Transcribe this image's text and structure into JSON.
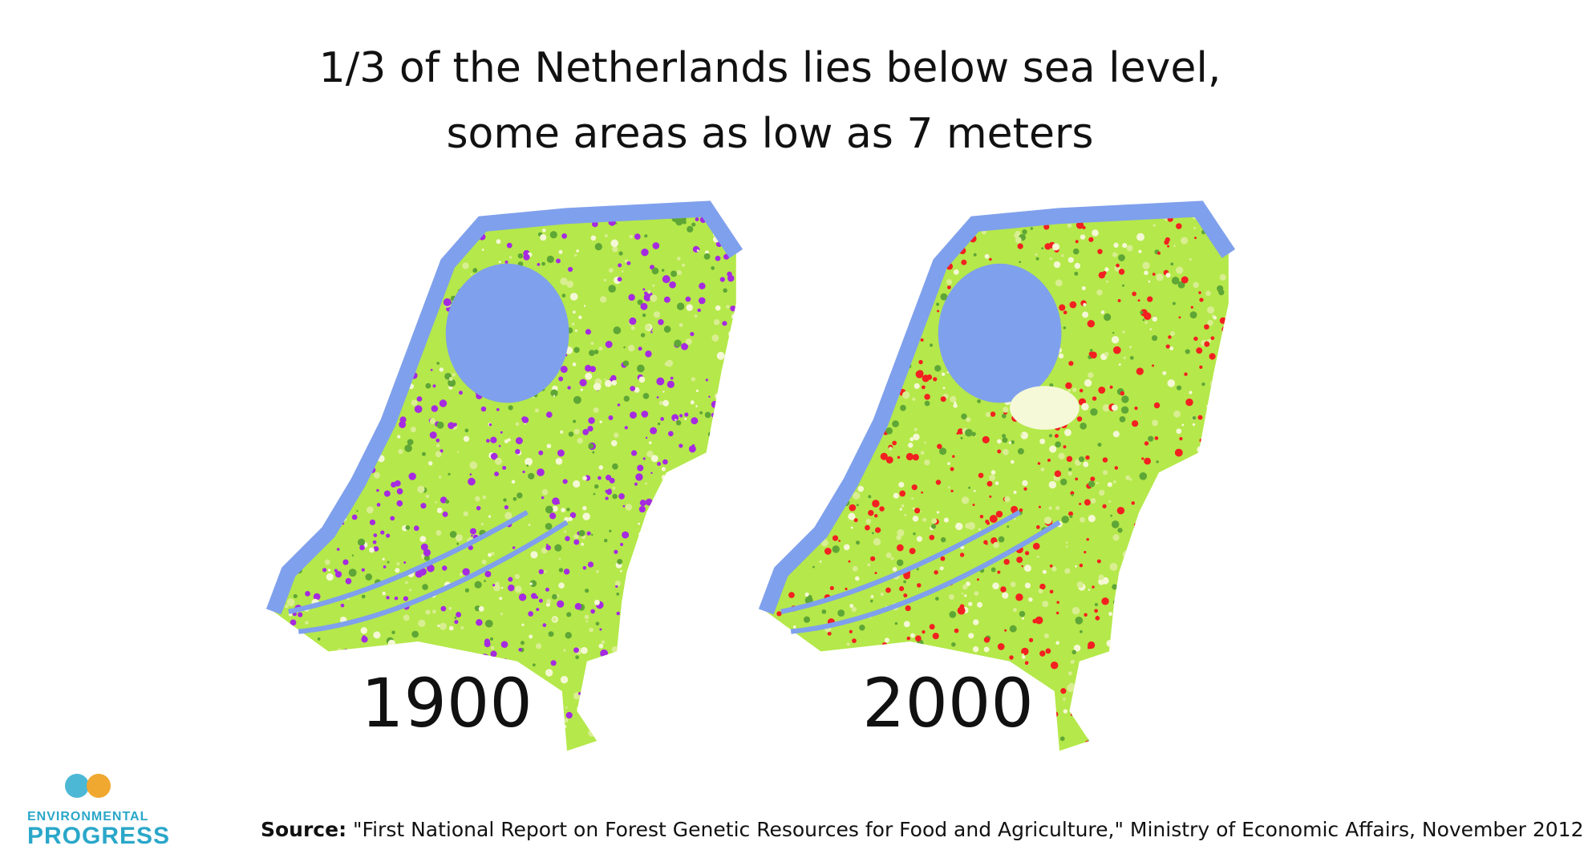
{
  "title": [
    "1/3 of the Netherlands lies below sea level,",
    "some areas as low as 7 meters"
  ],
  "maps": [
    {
      "label": "1900"
    },
    {
      "label": "2000"
    }
  ],
  "logo": {
    "line1": "ENVIRONMENTAL",
    "line2": "PROGRESS"
  },
  "source": {
    "label": "Source:",
    "text": "\"First National Report on Forest Genetic Resources for Food and Agriculture,\" Ministry of Economic Affairs, November 2012"
  }
}
